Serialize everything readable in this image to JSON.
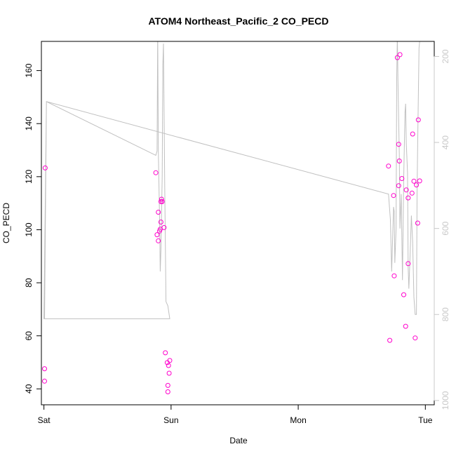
{
  "chart_data": {
    "type": "scatter",
    "title": "ATOM4 Northeast_Pacific_2 CO_PECD",
    "xlabel": "Date",
    "ylabel": "CO_PECD",
    "xlim": [
      -0.02,
      3.07
    ],
    "ylim": [
      34,
      171
    ],
    "x_ticks": [
      {
        "value": 0,
        "label": "Sat"
      },
      {
        "value": 1,
        "label": "Sun"
      },
      {
        "value": 2,
        "label": "Mon"
      },
      {
        "value": 3,
        "label": "Tue"
      }
    ],
    "y_ticks": [
      40,
      60,
      80,
      100,
      120,
      140,
      160
    ],
    "y2_ticks": [
      200,
      400,
      600,
      800,
      1000
    ],
    "y2lim": [
      1010,
      165
    ],
    "y2_reversed": true,
    "grid": false,
    "colors": {
      "points": "#ff00cc",
      "pressure_line": "#c0c0c0",
      "right_axis": "#c8c8c8",
      "frame": "#000000"
    },
    "series": [
      {
        "values": [
          {
            "x": 0.01,
            "y": 123.3
          },
          {
            "x": 0.005,
            "y": 47.6
          },
          {
            "x": 0.005,
            "y": 42.9
          },
          {
            "x": 0.88,
            "y": 121.5
          },
          {
            "x": 0.89,
            "y": 98.1
          },
          {
            "x": 0.9,
            "y": 95.8
          },
          {
            "x": 0.9,
            "y": 106.6
          },
          {
            "x": 0.91,
            "y": 99.5
          },
          {
            "x": 0.915,
            "y": 100.2
          },
          {
            "x": 0.92,
            "y": 102.9
          },
          {
            "x": 0.92,
            "y": 110.6
          },
          {
            "x": 0.925,
            "y": 111.5
          },
          {
            "x": 0.93,
            "y": 110.6
          },
          {
            "x": 0.945,
            "y": 100.8
          },
          {
            "x": 0.955,
            "y": 53.6
          },
          {
            "x": 0.97,
            "y": 49.9
          },
          {
            "x": 0.975,
            "y": 41.3
          },
          {
            "x": 0.975,
            "y": 38.9
          },
          {
            "x": 0.98,
            "y": 48.8
          },
          {
            "x": 0.985,
            "y": 45.9
          },
          {
            "x": 0.99,
            "y": 50.7
          },
          {
            "x": 2.71,
            "y": 124.0
          },
          {
            "x": 2.72,
            "y": 58.3
          },
          {
            "x": 2.75,
            "y": 112.9
          },
          {
            "x": 2.755,
            "y": 82.6
          },
          {
            "x": 2.78,
            "y": 164.9
          },
          {
            "x": 2.79,
            "y": 116.6
          },
          {
            "x": 2.79,
            "y": 132.2
          },
          {
            "x": 2.795,
            "y": 125.9
          },
          {
            "x": 2.8,
            "y": 166.0
          },
          {
            "x": 2.815,
            "y": 119.3
          },
          {
            "x": 2.83,
            "y": 75.5
          },
          {
            "x": 2.845,
            "y": 63.6
          },
          {
            "x": 2.85,
            "y": 115.0
          },
          {
            "x": 2.865,
            "y": 87.2
          },
          {
            "x": 2.865,
            "y": 112.0
          },
          {
            "x": 2.895,
            "y": 113.8
          },
          {
            "x": 2.9,
            "y": 136.1
          },
          {
            "x": 2.91,
            "y": 118.3
          },
          {
            "x": 2.92,
            "y": 59.2
          },
          {
            "x": 2.93,
            "y": 116.9
          },
          {
            "x": 2.94,
            "y": 102.5
          },
          {
            "x": 2.945,
            "y": 141.4
          },
          {
            "x": 2.955,
            "y": 118.4
          }
        ]
      },
      {
        "axis": "right",
        "values": [
          {
            "x": 0.005,
            "y": 810
          },
          {
            "x": 0.02,
            "y": 305
          },
          {
            "x": 0.88,
            "y": 430
          },
          {
            "x": 0.89,
            "y": 420
          },
          {
            "x": 0.895,
            "y": 140
          },
          {
            "x": 0.9,
            "y": 420
          },
          {
            "x": 0.91,
            "y": 580
          },
          {
            "x": 0.915,
            "y": 700
          },
          {
            "x": 0.92,
            "y": 650
          },
          {
            "x": 0.93,
            "y": 480
          },
          {
            "x": 0.935,
            "y": 220
          },
          {
            "x": 0.94,
            "y": 170
          },
          {
            "x": 0.945,
            "y": 330
          },
          {
            "x": 0.95,
            "y": 500
          },
          {
            "x": 0.96,
            "y": 770
          },
          {
            "x": 0.975,
            "y": 780
          },
          {
            "x": 0.99,
            "y": 810
          },
          {
            "x": 0.99,
            "y": 810
          },
          {
            "x": 0.0,
            "y": 810
          },
          {
            "x": 0.02,
            "y": 305
          },
          {
            "x": 2.71,
            "y": 520
          },
          {
            "x": 2.725,
            "y": 580
          },
          {
            "x": 2.735,
            "y": 700
          },
          {
            "x": 2.75,
            "y": 550
          },
          {
            "x": 2.755,
            "y": 560
          },
          {
            "x": 2.76,
            "y": 680
          },
          {
            "x": 2.77,
            "y": 600
          },
          {
            "x": 2.775,
            "y": 250
          },
          {
            "x": 2.78,
            "y": 150
          },
          {
            "x": 2.785,
            "y": 260
          },
          {
            "x": 2.79,
            "y": 350
          },
          {
            "x": 2.795,
            "y": 430
          },
          {
            "x": 2.8,
            "y": 600
          },
          {
            "x": 2.81,
            "y": 520
          },
          {
            "x": 2.82,
            "y": 720
          },
          {
            "x": 2.83,
            "y": 480
          },
          {
            "x": 2.84,
            "y": 330
          },
          {
            "x": 2.845,
            "y": 310
          },
          {
            "x": 2.85,
            "y": 400
          },
          {
            "x": 2.86,
            "y": 470
          },
          {
            "x": 2.865,
            "y": 690
          },
          {
            "x": 2.87,
            "y": 740
          },
          {
            "x": 2.88,
            "y": 660
          },
          {
            "x": 2.89,
            "y": 570
          },
          {
            "x": 2.9,
            "y": 630
          },
          {
            "x": 2.91,
            "y": 760
          },
          {
            "x": 2.92,
            "y": 800
          },
          {
            "x": 2.93,
            "y": 800
          },
          {
            "x": 2.935,
            "y": 520
          },
          {
            "x": 2.94,
            "y": 400
          },
          {
            "x": 2.95,
            "y": 180
          },
          {
            "x": 2.96,
            "y": 150
          }
        ]
      }
    ]
  }
}
